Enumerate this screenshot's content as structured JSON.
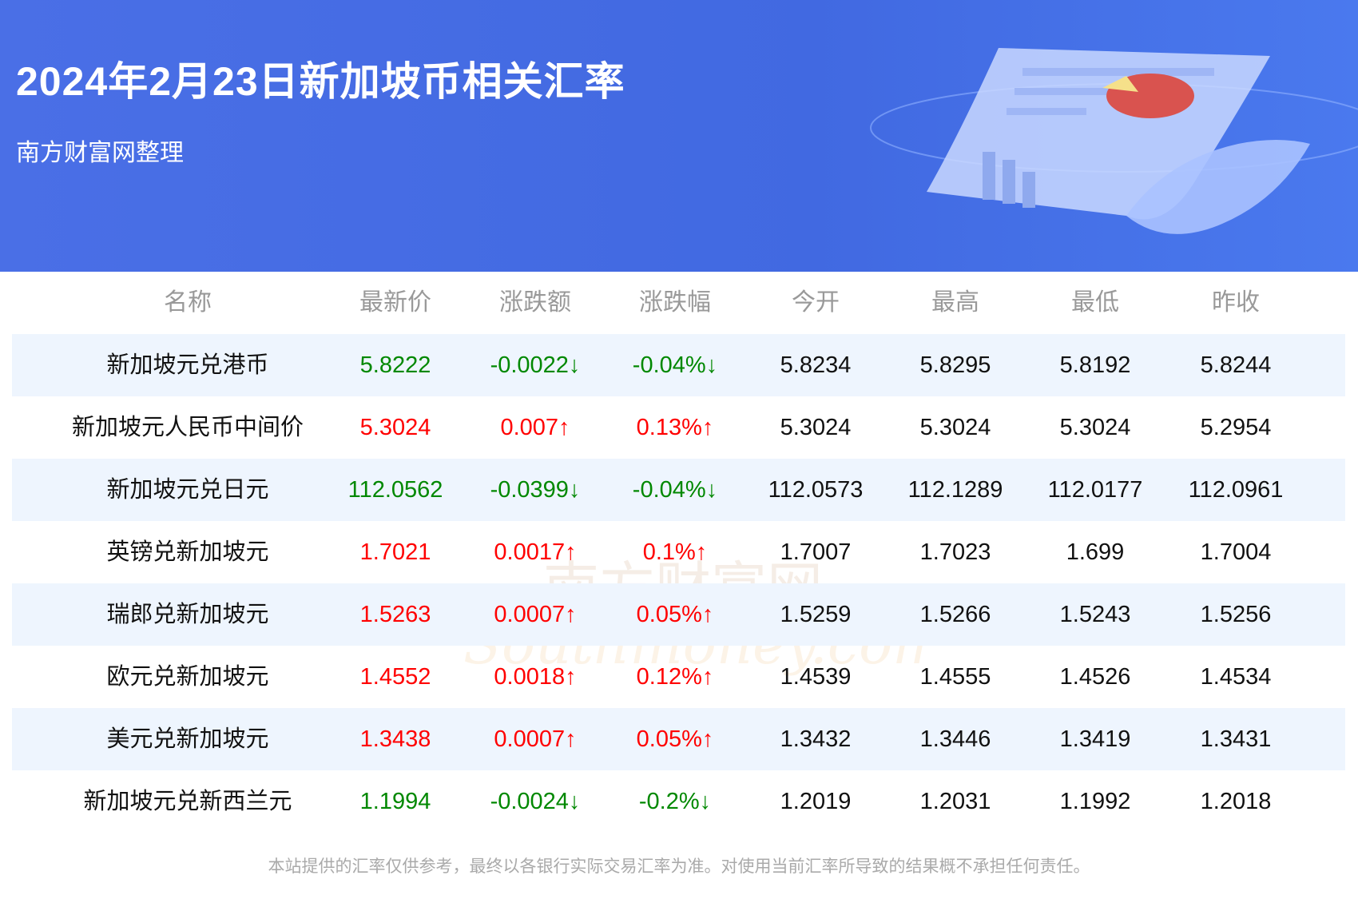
{
  "header": {
    "title": "2024年2月23日新加坡币相关汇率",
    "subtitle": "南方财富网整理"
  },
  "colors": {
    "banner": "#4169e1",
    "up": "#ff0000",
    "down": "#008800",
    "row_alt": "#eef5fe"
  },
  "table": {
    "columns": [
      "名称",
      "最新价",
      "涨跌额",
      "涨跌幅",
      "今开",
      "最高",
      "最低",
      "昨收"
    ],
    "rows": [
      {
        "name": "新加坡元兑港币",
        "latest": "5.8222",
        "change": "-0.0022↓",
        "pct": "-0.04%↓",
        "open": "5.8234",
        "high": "5.8295",
        "low": "5.8192",
        "prev": "5.8244",
        "dir": "down"
      },
      {
        "name": "新加坡元人民币中间价",
        "latest": "5.3024",
        "change": "0.007↑",
        "pct": "0.13%↑",
        "open": "5.3024",
        "high": "5.3024",
        "low": "5.3024",
        "prev": "5.2954",
        "dir": "up"
      },
      {
        "name": "新加坡元兑日元",
        "latest": "112.0562",
        "change": "-0.0399↓",
        "pct": "-0.04%↓",
        "open": "112.0573",
        "high": "112.1289",
        "low": "112.0177",
        "prev": "112.0961",
        "dir": "down"
      },
      {
        "name": "英镑兑新加坡元",
        "latest": "1.7021",
        "change": "0.0017↑",
        "pct": "0.1%↑",
        "open": "1.7007",
        "high": "1.7023",
        "low": "1.699",
        "prev": "1.7004",
        "dir": "up"
      },
      {
        "name": "瑞郎兑新加坡元",
        "latest": "1.5263",
        "change": "0.0007↑",
        "pct": "0.05%↑",
        "open": "1.5259",
        "high": "1.5266",
        "low": "1.5243",
        "prev": "1.5256",
        "dir": "up"
      },
      {
        "name": "欧元兑新加坡元",
        "latest": "1.4552",
        "change": "0.0018↑",
        "pct": "0.12%↑",
        "open": "1.4539",
        "high": "1.4555",
        "low": "1.4526",
        "prev": "1.4534",
        "dir": "up"
      },
      {
        "name": "美元兑新加坡元",
        "latest": "1.3438",
        "change": "0.0007↑",
        "pct": "0.05%↑",
        "open": "1.3432",
        "high": "1.3446",
        "low": "1.3419",
        "prev": "1.3431",
        "dir": "up"
      },
      {
        "name": "新加坡元兑新西兰元",
        "latest": "1.1994",
        "change": "-0.0024↓",
        "pct": "-0.2%↓",
        "open": "1.2019",
        "high": "1.2031",
        "low": "1.1992",
        "prev": "1.2018",
        "dir": "down"
      }
    ]
  },
  "watermark": {
    "cn": "南方财富网",
    "en": "Southmoney.com"
  },
  "footer": "本站提供的汇率仅供参考，最终以各银行实际交易汇率为准。对使用当前汇率所导致的结果概不承担任何责任。"
}
